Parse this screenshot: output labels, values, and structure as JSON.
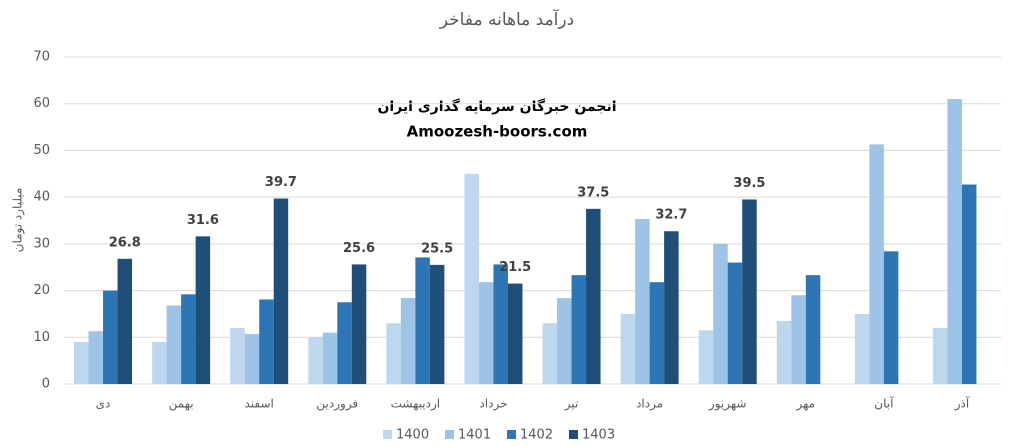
{
  "chart_data": {
    "type": "bar",
    "title": "درآمد ماهانه مفاخر",
    "y_label": "میلیارد تومان",
    "annotations": [
      "انجمن خبرگان سرمایه گذاری ایران",
      "Amoozesh-boors.com"
    ],
    "categories": [
      "دی",
      "بهمن",
      "اسفند",
      "فروردین",
      "اردیبهشت",
      "خرداد",
      "تیر",
      "مرداد",
      "شهریور",
      "مهر",
      "آبان",
      "آذر"
    ],
    "series": [
      {
        "name": "1400",
        "color": "#bdd7ee",
        "values": [
          9,
          9,
          12,
          10,
          13,
          45,
          13,
          15,
          11.5,
          13.5,
          15,
          12
        ]
      },
      {
        "name": "1401",
        "color": "#9dc3e6",
        "values": [
          11.3,
          16.8,
          10.7,
          11,
          18.4,
          21.8,
          18.4,
          35.3,
          30,
          19,
          51.3,
          61
        ]
      },
      {
        "name": "1402",
        "color": "#2e75b6",
        "values": [
          20,
          19.2,
          18.1,
          17.5,
          27.1,
          25.6,
          23.3,
          21.8,
          26,
          23.3,
          28.4,
          42.7
        ]
      },
      {
        "name": "1403",
        "color": "#1f4e79",
        "values": [
          26.8,
          31.6,
          39.7,
          25.6,
          25.5,
          21.5,
          37.5,
          32.7,
          39.5,
          null,
          null,
          null
        ],
        "data_labels": true
      }
    ],
    "ylim": [
      0,
      70
    ],
    "yticks": [
      0,
      10,
      20,
      30,
      40,
      50,
      60,
      70
    ],
    "grid": true,
    "legend": "bottom"
  }
}
